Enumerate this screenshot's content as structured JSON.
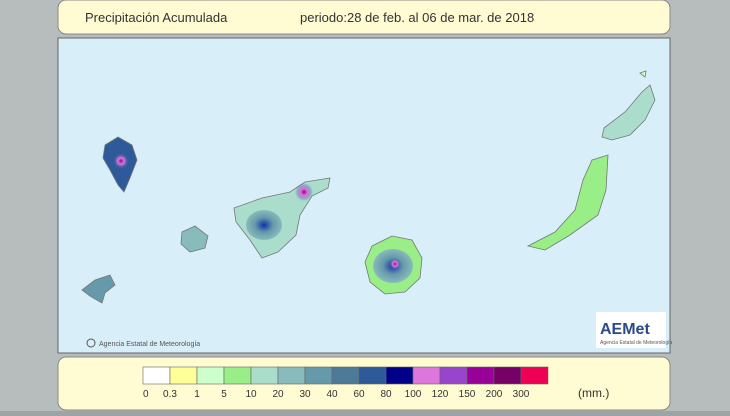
{
  "header": {
    "title": "Precipitación Acumulada",
    "period": "periodo:28 de feb. al 06 de mar. de 2018"
  },
  "map": {
    "credit": "Agencia Estatal de Meteorología",
    "logo": "AEMet",
    "logo_subtitle": "Agencia Estatal de Meteorología"
  },
  "legend": {
    "unit": "(mm.)",
    "items": [
      {
        "label": "0",
        "color": "#ffffff"
      },
      {
        "label": "0.3",
        "color": "#ffff99"
      },
      {
        "label": "1",
        "color": "#ccffcc"
      },
      {
        "label": "5",
        "color": "#99ee88"
      },
      {
        "label": "10",
        "color": "#aaddcc"
      },
      {
        "label": "20",
        "color": "#88bbbb"
      },
      {
        "label": "30",
        "color": "#6699aa"
      },
      {
        "label": "40",
        "color": "#4d7a99"
      },
      {
        "label": "60",
        "color": "#2e5a99"
      },
      {
        "label": "80",
        "color": "#000088"
      },
      {
        "label": "100",
        "color": "#dd77dd"
      },
      {
        "label": "120",
        "color": "#9944cc"
      },
      {
        "label": "150",
        "color": "#990099"
      },
      {
        "label": "200",
        "color": "#770066"
      },
      {
        "label": "300",
        "color": "#ee0055"
      }
    ]
  }
}
